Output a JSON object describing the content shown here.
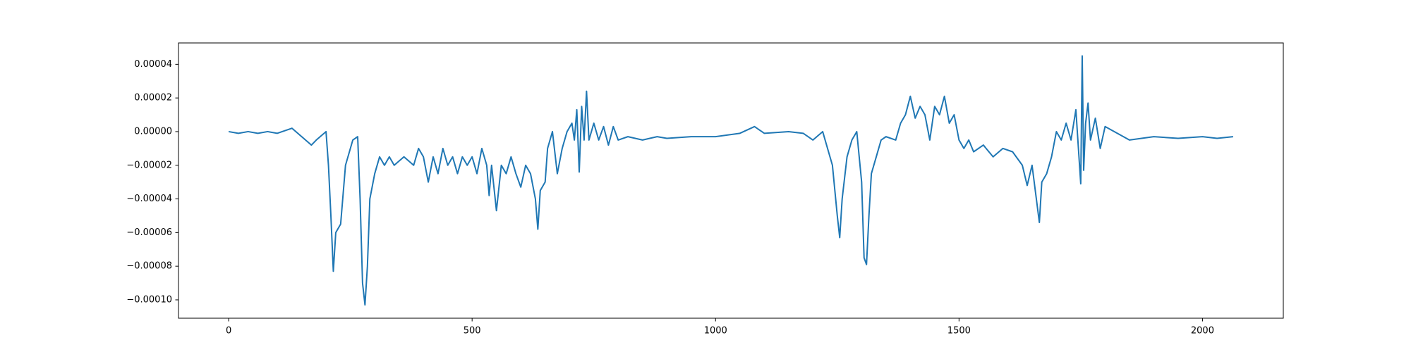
{
  "chart_data": {
    "type": "line",
    "xlim": [
      -103,
      2166
    ],
    "xticks": [
      0,
      500,
      1000,
      1500,
      2000
    ],
    "ylim": [
      -0.0001109,
      5.27e-05
    ],
    "yticks": [
      {
        "value": 4e-05,
        "label": "0.00004"
      },
      {
        "value": 2e-05,
        "label": "0.00002"
      },
      {
        "value": 0,
        "label": "0.00000"
      },
      {
        "value": -2e-05,
        "label": "−0.00002"
      },
      {
        "value": -4e-05,
        "label": "−0.00004"
      },
      {
        "value": -6e-05,
        "label": "−0.00006"
      },
      {
        "value": -8e-05,
        "label": "−0.00008"
      },
      {
        "value": -0.0001,
        "label": "−0.00010"
      }
    ],
    "grid": false,
    "series": [
      {
        "color": "#1f77b4",
        "x": [
          0,
          20,
          40,
          60,
          80,
          100,
          120,
          130,
          150,
          170,
          180,
          200,
          205,
          210,
          215,
          220,
          230,
          240,
          250,
          255,
          265,
          270,
          275,
          280,
          285,
          290,
          300,
          310,
          320,
          330,
          340,
          360,
          380,
          390,
          400,
          410,
          420,
          430,
          440,
          450,
          460,
          470,
          480,
          490,
          500,
          510,
          520,
          530,
          535,
          540,
          550,
          560,
          570,
          580,
          590,
          600,
          610,
          620,
          630,
          635,
          640,
          650,
          655,
          665,
          675,
          685,
          695,
          705,
          710,
          715,
          720,
          725,
          730,
          735,
          740,
          750,
          760,
          770,
          780,
          790,
          800,
          820,
          850,
          880,
          900,
          950,
          1000,
          1050,
          1080,
          1100,
          1150,
          1180,
          1200,
          1220,
          1240,
          1250,
          1255,
          1260,
          1270,
          1280,
          1290,
          1300,
          1305,
          1310,
          1315,
          1320,
          1330,
          1340,
          1350,
          1370,
          1380,
          1390,
          1400,
          1410,
          1420,
          1430,
          1440,
          1450,
          1460,
          1470,
          1480,
          1490,
          1500,
          1510,
          1520,
          1530,
          1550,
          1570,
          1590,
          1610,
          1630,
          1640,
          1650,
          1665,
          1670,
          1680,
          1690,
          1700,
          1710,
          1720,
          1730,
          1740,
          1750,
          1753,
          1756,
          1760,
          1765,
          1770,
          1780,
          1790,
          1800,
          1850,
          1900,
          1950,
          2000,
          2030,
          2063
        ],
        "values": [
          0,
          -1e-06,
          0,
          -1e-06,
          0,
          -1e-06,
          1e-06,
          2e-06,
          -3e-06,
          -8e-06,
          -5e-06,
          0,
          -2e-05,
          -5e-05,
          -8.3e-05,
          -6e-05,
          -5.5e-05,
          -2e-05,
          -1e-05,
          -5e-06,
          -3e-06,
          -4e-05,
          -9e-05,
          -0.000103,
          -8e-05,
          -4e-05,
          -2.5e-05,
          -1.5e-05,
          -2e-05,
          -1.5e-05,
          -2e-05,
          -1.5e-05,
          -2e-05,
          -1e-05,
          -1.5e-05,
          -3e-05,
          -1.5e-05,
          -2.5e-05,
          -1e-05,
          -2e-05,
          -1.5e-05,
          -2.5e-05,
          -1.5e-05,
          -2e-05,
          -1.5e-05,
          -2.5e-05,
          -1e-05,
          -2e-05,
          -3.8e-05,
          -2e-05,
          -4.7e-05,
          -2e-05,
          -2.5e-05,
          -1.5e-05,
          -2.5e-05,
          -3.3e-05,
          -2e-05,
          -2.5e-05,
          -4e-05,
          -5.8e-05,
          -3.5e-05,
          -3e-05,
          -1e-05,
          0,
          -2.5e-05,
          -1e-05,
          0,
          5e-06,
          -5e-06,
          1.3e-05,
          -2.4e-05,
          1.5e-05,
          -5e-06,
          2.4e-05,
          -5e-06,
          5e-06,
          -5e-06,
          3e-06,
          -8e-06,
          3e-06,
          -5e-06,
          -3e-06,
          -5e-06,
          -3e-06,
          -4e-06,
          -3e-06,
          -3e-06,
          -1e-06,
          3e-06,
          -1e-06,
          0,
          -1e-06,
          -5e-06,
          0,
          -2e-05,
          -5e-05,
          -6.3e-05,
          -4e-05,
          -1.5e-05,
          -5e-06,
          0,
          -3e-05,
          -7.5e-05,
          -7.9e-05,
          -5e-05,
          -2.5e-05,
          -1.5e-05,
          -5e-06,
          -3e-06,
          -5e-06,
          5e-06,
          1e-05,
          2.1e-05,
          8e-06,
          1.5e-05,
          1e-05,
          -5e-06,
          1.5e-05,
          1e-05,
          2.1e-05,
          5e-06,
          1e-05,
          -5e-06,
          -1e-05,
          -5e-06,
          -1.2e-05,
          -8e-06,
          -1.5e-05,
          -1e-05,
          -1.2e-05,
          -2e-05,
          -3.2e-05,
          -2e-05,
          -5.4e-05,
          -3e-05,
          -2.5e-05,
          -1.5e-05,
          0,
          -5e-06,
          5e-06,
          -5e-06,
          1.3e-05,
          -3.1e-05,
          4.5e-05,
          -2.3e-05,
          5e-06,
          1.7e-05,
          -5e-06,
          8e-06,
          -1e-05,
          3e-06,
          -5e-06,
          -3e-06,
          -4e-06,
          -3e-06,
          -4e-06,
          -3e-06
        ]
      }
    ]
  }
}
